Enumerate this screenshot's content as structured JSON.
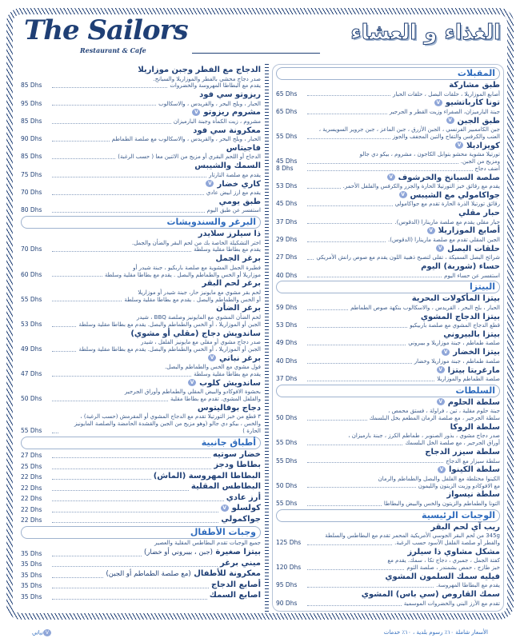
{
  "header": {
    "logo": "The Sailors",
    "logo_sub": "Restaurant & Cafe",
    "title": "الغذاء و العشاء"
  },
  "colors": {
    "navy": "#1f3f75",
    "section": "#2e6bbd",
    "vegan_badge": "#8fa6d8"
  },
  "currency": "Dhs",
  "right_column": [
    {
      "title": "المقبلات",
      "items": [
        {
          "name": "طبق مشاركة",
          "desc": [
            "أصابع الموزاريلا ، حلقات البصل ، حلقات الحبار"
          ],
          "price": "65 Dhs"
        },
        {
          "name": "تونا كارباتشيو",
          "vegan": true,
          "desc": [
            "جبنة البارميزان، الصفراء وزيت القطر و الجرجير"
          ],
          "price": "65 Dhs"
        },
        {
          "name": "طبق الجبن",
          "vegan": true,
          "desc": [
            "جبن الكاممبير الفرنسي ، الجبن الأزرق ، جبن الماعز ، جبن جروير السويسرية ،",
            "العنب والكرفس والتفاح والتين المجفف والجوز"
          ],
          "price": "55 Dhs"
        },
        {
          "name": "كويزاديلا",
          "vegan": true,
          "desc": [
            "تورتيلا مشوية محشو بتوابل الكاجون ، مشروم ، بيكو دي جالو",
            "ومزيج من الجبن."
          ],
          "price": "45 Dhs",
          "extra": {
            "label": "أضف دجاج",
            "price": "8 Dhs"
          }
        },
        {
          "name": "صلصة السبانخ والخرشوف",
          "vegan": true,
          "desc": [
            "يقدم مع رقائق خبز التورتيلا الحارة والجزر والكرفس والفلفل الأحمر."
          ],
          "price": "53 Dhs"
        },
        {
          "name": "جواكامولي مع الشيبس",
          "vegan": true,
          "desc": [
            "رقائق تورتيلا الذرة الحارة تقدم مع جواكامولي"
          ],
          "price": "45 Dhs"
        },
        {
          "name": "حبار مقلي",
          "desc": [
            "حبار مقلي يقدم مع صلصة مارينارا (الدقوس)."
          ],
          "price": "37 Dhs"
        },
        {
          "name": "أصابع الموزاريلا",
          "vegan": true,
          "desc": [
            "الجبن المقلي تقدم مع صلصة مارينارا (الدقوس)."
          ],
          "price": "29 Dhs"
        },
        {
          "name": "حلقات البصل",
          "vegan": true,
          "desc": [
            "شرائح البصل السميكة ، تقلى لتصبح ذهبية اللون يقدم مع صوص رانش الأمريكي"
          ],
          "price": "27 Dhs"
        },
        {
          "name": "حساء (شوربة) اليوم",
          "desc": [
            "استفسر عن حساء اليوم"
          ],
          "price": "40 Dhs"
        }
      ]
    },
    {
      "title": "البيتزا",
      "items": [
        {
          "name": "بيتزا المأكولات البحرية",
          "desc": [
            "الحبار ، بلح البحر ، القريدس ، والاسكالوب بنكهة صوص الطماطم"
          ],
          "price": "59 Dhs"
        },
        {
          "name": "بيتزا الدجاج المشوي",
          "desc": [
            "قطع الدجاج المشوي مع صلصة باربيكيو"
          ],
          "price": "53 Dhs"
        },
        {
          "name": "بيتزا بالبيروني",
          "desc": [
            "صلصة طماطم ، جبنة موزاريلا و بيبروني"
          ],
          "price": "49 Dhs"
        },
        {
          "name": "بيتزا الخضار",
          "vegan": true,
          "desc": [
            "صلصة طماطم ، جبنة موزاريلا وخضار"
          ],
          "price": "40 Dhs"
        },
        {
          "name": "مارغريتا بيتزا",
          "vegan": true,
          "desc": [
            "صلصة الطماطم والموزاريلا"
          ],
          "price": "37 Dhs"
        }
      ]
    },
    {
      "title": "السلطات",
      "items": [
        {
          "name": "سلطة الحلوم",
          "vegan": true,
          "desc": [
            "جبنة حلوم مقلية ، تين ، فراولة ، فستق محمص ،",
            "سلطة الجرجير ، مع صلصة الرمان المطعم بخل البلسمك"
          ],
          "price": "50 Dhs"
        },
        {
          "name": "سلطة الروكا",
          "desc": [
            "صدر دجاج مشوي ، بذور الصنوبر ، طماطم الكرز ، جبنة بارميزان ،",
            "أوراق الجرجير ، مع صلصة الخل البلسمك"
          ],
          "price": "55 Dhs"
        },
        {
          "name": "سلطة سيزر الدجاج",
          "desc": [
            "سلطة سيزار مع الدجاج"
          ],
          "price": "55 Dhs"
        },
        {
          "name": "سلطة الكينوا",
          "vegan": true,
          "desc": [
            "الكينوا مختلطة مع الفلفل والبصل والطماطم والرمان",
            "مع الافوكادو وزيت الزيتون والليمون"
          ],
          "price": "50 Dhs"
        },
        {
          "name": "سلطة نيسواز",
          "desc": [
            "التونا والطماطم والزيتون والخس والبيض والبطاطا"
          ],
          "price": "55 Dhs"
        }
      ]
    },
    {
      "title": "الوجبات الرئيسية",
      "items": [
        {
          "name": "ريب آي لحم البقر",
          "desc": [
            "345g من لحم البقر الجوسي الأمريكية المحمر تقدم مع البطاطس والسلطة",
            "والفطر أو صلصة الفلفل الأسود حسب الرغبة."
          ],
          "price": "125 Dhs"
        },
        {
          "name": "مشكل مشاوي ذا سيلرز",
          "desc": [
            "كفتة الجمل ، جمبري ، دجاج تكا ، سمك. يقدم مع",
            "خبز طازج ، حمص بشمندر ، صلصة الثوم"
          ],
          "price": "120 Dhs"
        },
        {
          "name": "فيليه سمك السلمون المشوي",
          "desc": [
            "يقدم مع البطاطا المهروسة."
          ],
          "price": "95 Dhs"
        },
        {
          "name": "سمك القاروص (سي باس) المشوي",
          "desc": [
            "تقدم مع الأرز البني والخضروات الموسمية"
          ],
          "price": "90 Dhs"
        }
      ]
    }
  ],
  "left_column": [
    {
      "title": "",
      "items": [
        {
          "name": "الدجاج مع الفطر وجبن موزاريلا",
          "desc": [
            "صدر دجاج محشي بالفطر والموزاريلا والسبانخ.",
            "يقدم مع البطاطا المهروسة والخضروات"
          ],
          "price": "85 Dhs"
        },
        {
          "name": "ريزوتو سي فود",
          "desc": [
            "الحبار ، وبلح البحر ، والقريدس ، والاسكالوب"
          ],
          "price": "95 Dhs"
        },
        {
          "name": "مشروم ريزوتو",
          "vegan": true,
          "desc": [
            "مشروم ، زيت الكمأة وجبنة البارميزان"
          ],
          "price": "85 Dhs"
        },
        {
          "name": "معكرونة سي فود",
          "desc": [
            "الحبار ، وبلح البحر ، والقريدس ، والاسكالوب مع صلصة الطماطم"
          ],
          "price": "90 Dhs"
        },
        {
          "name": "فاجيتاس",
          "desc": [
            "الدجاج أو اللحم البقري أو مزيج من الاثنين معا ( حسب الرغبة)"
          ],
          "price": "85 Dhs"
        },
        {
          "name": "السمك والشيبس",
          "desc": [
            "يقدم مع صلصة التارتار"
          ],
          "price": "75 Dhs"
        },
        {
          "name": "كاري خضار",
          "vegan": true,
          "desc": [
            "يقدم مع ارز ابيض عادي"
          ],
          "price": "70 Dhs"
        },
        {
          "name": "طبق يومي",
          "desc": [
            "استفسر عن طبق اليوم"
          ],
          "price": "80 Dhs"
        }
      ]
    },
    {
      "title": "البرغر والسندويشات",
      "items": [
        {
          "name": "ذا سيلرز سلايدر",
          "desc": [
            "اختر التشكيلة الخاصة بك من لحم البقر والضأن والجمل.",
            "يقدم مع بطاطا مقلية وسلطة"
          ],
          "price": "70 Dhs"
        },
        {
          "name": "برغر الجمل",
          "desc": [
            "فطيرة الجمل المشوية مع صلصة باربكيو ، جبنة شيدر أو",
            "موزاريلا أو الخس والطماطم والبصل . يقدم مع بطاطا مقلية وسلطة"
          ],
          "price": "60 Dhs"
        },
        {
          "name": "برغر لحم البقر",
          "desc": [
            "لحم بقر مشوي مع مايونيز حار، جبنة شيدر أو موزاريلا",
            "أو الخس والطماطم والبصل . يقدم مع بطاطا مقلية وسلطة"
          ],
          "price": "55 Dhs"
        },
        {
          "name": "برغر الضأن",
          "desc": [
            "لحم الضأن المشوي مع المايونيز وصلصة BBQ ، شيدر",
            "الجبن أو الموزاريلا ، أو الخس والطماطم والبصل. يقدم مع بطاطا مقلية وسلطة"
          ],
          "price": "53 Dhs"
        },
        {
          "name": "ساندويش دجاج (مقلي أو مشوي)",
          "desc": [
            "صدر دجاج مشوي أو مقلي مع مايونيز الفلفل ، شيدر",
            "الجبن أو الموزاريلا ، أو الخس والطماطم والبصل. يقدم مع بطاطا مقلية وسلطة"
          ],
          "price": "49 Dhs"
        },
        {
          "name": "برغر نباتي",
          "vegan": true,
          "desc": [
            "فول مشوي مع الخس والطماطم والبصل.",
            "يقدم مع بطاطا مقلية وسلطة"
          ],
          "price": "47 Dhs"
        },
        {
          "name": "ساندويش كلوب",
          "vegan": true,
          "desc": [
            "بحشوة الافوكادو والبيض المقلي والطماطم وأوراق الجرجير",
            "والفلفل المشوي. تقدم مع بطاطا مقلية"
          ],
          "price": "50 Dhs"
        },
        {
          "name": "دجاج بوفاليتوس",
          "desc": [
            "٣ قطع من خبز التورتيلا تقدم مع الدجاج المشوي أو المقرمش (حسب الرغبة) ،",
            "والخس ، بيكو دي جالو (وهو مزيج من الجبن والقشدة الحامضة والصلصة المايونيز الحارة )"
          ],
          "price": "55 Dhs"
        }
      ]
    },
    {
      "title": "أطباق جانبية",
      "items": [
        {
          "name": "خضار سوتيه",
          "price": "27 Dhs"
        },
        {
          "name": "بطاطا ودجز",
          "price": "25 Dhs"
        },
        {
          "name": "البطاطا المهروسة (الماش)",
          "price": "22 Dhs"
        },
        {
          "name": "البطاطس المقلية",
          "price": "22 Dhs"
        },
        {
          "name": "أرز عادي",
          "price": "22 Dhs"
        },
        {
          "name": "كولسلو",
          "vegan": true,
          "price": "22 Dhs"
        },
        {
          "name": "جواكمولي",
          "price": "22 Dhs"
        }
      ]
    },
    {
      "title": "وجبات الأطفال",
      "note": "جميع الوجبات تقدم البطاطس المقلية والعصير",
      "items": [
        {
          "name": "بيتزا صغيرة",
          "detail": "(جبن ، بيبروني أو خضار)",
          "price": "35 Dhs"
        },
        {
          "name": "ميني برغر",
          "price": "35 Dhs"
        },
        {
          "name": "معكرونة للأطفال",
          "detail": "(مع صلصة الطماطم أو الجبن)",
          "price": "35 Dhs"
        },
        {
          "name": "أصابع الدجاج",
          "price": "35 Dhs"
        },
        {
          "name": "اصابع السمك",
          "price": "35 Dhs"
        }
      ]
    }
  ],
  "footer": {
    "prices_note": "الأسعار شاملة ١٠٪ رسوم بلدية ، ١٠٪ خدمات",
    "vegan_legend": "نباتي",
    "vegan_mark": "V"
  }
}
